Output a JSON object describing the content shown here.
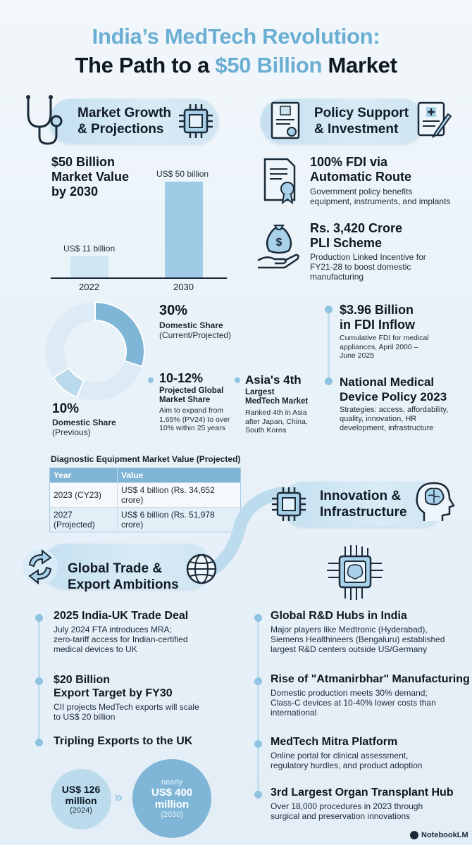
{
  "header": {
    "title_line1": "India’s MedTech Revolution:",
    "title_line2_prefix": "The Path to a ",
    "title_line2_accent": "$50 Billion",
    "title_line2_suffix": " Market"
  },
  "market": {
    "heading_line1": "Market Growth",
    "heading_line2": "& Projections",
    "value_line1": "$50 Billion",
    "value_line2": "Market Value",
    "value_line3": "by 2030",
    "chart_data": {
      "type": "bar",
      "categories": [
        "2022",
        "2030"
      ],
      "values": [
        11,
        50
      ],
      "data_labels": [
        "US$ 11 billion",
        "US$ 50 billion"
      ],
      "unit": "US$ billion"
    },
    "donut": {
      "chart_data": {
        "type": "pie",
        "labels": [
          "Domestic Share (Current/Projected)",
          "Domestic Share (Previous)"
        ],
        "values": [
          30,
          10
        ],
        "colors": [
          "#7fb6d8",
          "#b9d9ec"
        ]
      },
      "share_current_pct": "30%",
      "share_current_label_line1": "Domestic Share",
      "share_current_label_line2": "(Current/Projected)",
      "share_prev_pct": "10%",
      "share_prev_label_line1": "Domestic Share",
      "share_prev_label_line2": "(Previous)"
    },
    "global_share": {
      "value": "10-12%",
      "label_line1": "Projected Global",
      "label_line2": "Market Share",
      "desc_line1": "Aim to expand from",
      "desc_line2": "1.65% (PV24) to over",
      "desc_line3": "10% within 25 years"
    },
    "asia": {
      "title_line1": "Asia's 4th",
      "sub_line1": "Largest",
      "sub_line2": "MedTech Market",
      "desc_line1": "Ranked 4th in Asia",
      "desc_line2": "after Japan, China,",
      "desc_line3": "South Korea"
    }
  },
  "diagnostic": {
    "title": "Diagnostic Equipment Market Value (Projected)",
    "headers": [
      "Year",
      "Value"
    ],
    "rows": [
      [
        "2023 (CY23)",
        "US$ 4 billion (Rs. 34,652 crore)"
      ],
      [
        "2027 (Projected)",
        "US$ 6 billion (Rs. 51,978 crore)"
      ]
    ]
  },
  "policy": {
    "heading_line1": "Policy Support",
    "heading_line2": "& Investment",
    "fdi_title_line1": "100% FDI via",
    "fdi_title_line2": "Automatic Route",
    "fdi_desc_line1": "Government policy benefits",
    "fdi_desc_line2": "equipment, instruments, and implants",
    "pli_title_line1": "Rs. 3,420 Crore",
    "pli_title_line2": "PLI Scheme",
    "pli_desc_line1": "Production Linked Incentive for",
    "pli_desc_line2": "FY21-28 to boost domestic",
    "pli_desc_line3": "manufacturing",
    "inflow_title_line1": "$3.96 Billion",
    "inflow_title_line2": "in FDI Inflow",
    "inflow_desc_line1": "Cumulative FDI for medical",
    "inflow_desc_line2": "appliances, April 2000 –",
    "inflow_desc_line3": "June 2025",
    "nmdp_title_line1": "National Medical",
    "nmdp_title_line2": "Device Policy 2023",
    "nmdp_desc_line1": "Strategies: access, affordability,",
    "nmdp_desc_line2": "quality, innovation, HR",
    "nmdp_desc_line3": "development, infrastructure"
  },
  "innovation": {
    "heading_line1": "Innovation &",
    "heading_line2": "Infrastructure",
    "items": [
      {
        "title": "Global R&D Hubs in India",
        "desc": [
          "Major players like Medtronic (Hyderabad),",
          "Siemens Healthineers (Bengaluru) established",
          "largest R&D centers outside US/Germany"
        ]
      },
      {
        "title": "Rise of \"Atmanirbhar\" Manufacturing",
        "desc": [
          "Domestic production meets 30% demand;",
          "Class-C devices at 10-40% lower costs than",
          "international"
        ]
      },
      {
        "title": "MedTech Mitra Platform",
        "desc": [
          "Online portal for clinical assessment,",
          "regulatory hurdles, and product adoption"
        ]
      },
      {
        "title": "3rd Largest Organ Transplant Hub",
        "desc": [
          "Over 18,000 procedures in 2023 through",
          "surgical and preservation innovations"
        ]
      }
    ]
  },
  "trade": {
    "heading_line1": "Global Trade &",
    "heading_line2": "Export Ambitions",
    "deal_title": "2025 India-UK Trade Deal",
    "deal_desc": [
      "July 2024 FTA introduces MRA;",
      "zero-tariff access for Indian-certified",
      "medical devices to UK"
    ],
    "target_title_line1": "$20 Billion",
    "target_title_line2": "Export Target by FY30",
    "target_desc": [
      "CII projects MedTech exports will scale",
      "to US$ 20 billion"
    ],
    "tripling_title": "Tripling Exports to the UK",
    "from_value_line1": "US$ 126",
    "from_value_line2": "million",
    "from_year": "(2024)",
    "to_prefix": "nearly",
    "to_value_line1": "US$ 400",
    "to_value_line2": "million",
    "to_year": "(2030)",
    "exports_chart_data": {
      "type": "bar",
      "categories": [
        "2024",
        "2030"
      ],
      "values": [
        126,
        400
      ],
      "unit": "US$ million"
    }
  },
  "footer": {
    "brand": "NotebookLM"
  },
  "colors": {
    "accent": "#6aaed4",
    "bar": "#9fcbe6",
    "dark": "#0d1821"
  }
}
